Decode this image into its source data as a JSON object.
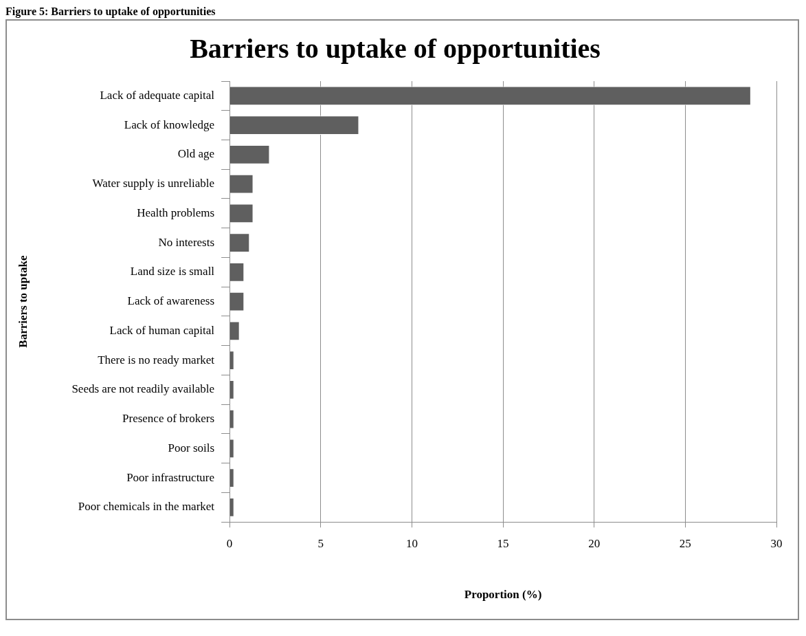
{
  "chart_data": {
    "type": "bar",
    "orientation": "horizontal",
    "title": "Barriers to uptake of opportunities",
    "xlabel": "Proportion (%)",
    "ylabel": "Barriers to uptake",
    "annotations": [
      "Figure 5: Barriers to uptake of opportunities"
    ],
    "categories": [
      "Lack of adequate capital",
      "Lack of knowledge",
      "Old age",
      "Water supply is unreliable",
      "Health problems",
      "No interests",
      "Land size is small",
      "Lack of awareness",
      "Lack of human capital",
      "There is no ready market",
      "Seeds are not readily available",
      "Presence of brokers",
      "Poor soils",
      "Poor infrastructure",
      "Poor chemicals in the market"
    ],
    "values": [
      28.6,
      7.1,
      2.2,
      1.3,
      1.3,
      1.1,
      0.8,
      0.8,
      0.55,
      0.25,
      0.25,
      0.25,
      0.25,
      0.25,
      0.25
    ],
    "color": "#5f5f5f",
    "xlim": [
      0,
      30
    ],
    "xticks": [
      0,
      5,
      10,
      15,
      20,
      25,
      30
    ],
    "grid": "x",
    "legend": false
  }
}
